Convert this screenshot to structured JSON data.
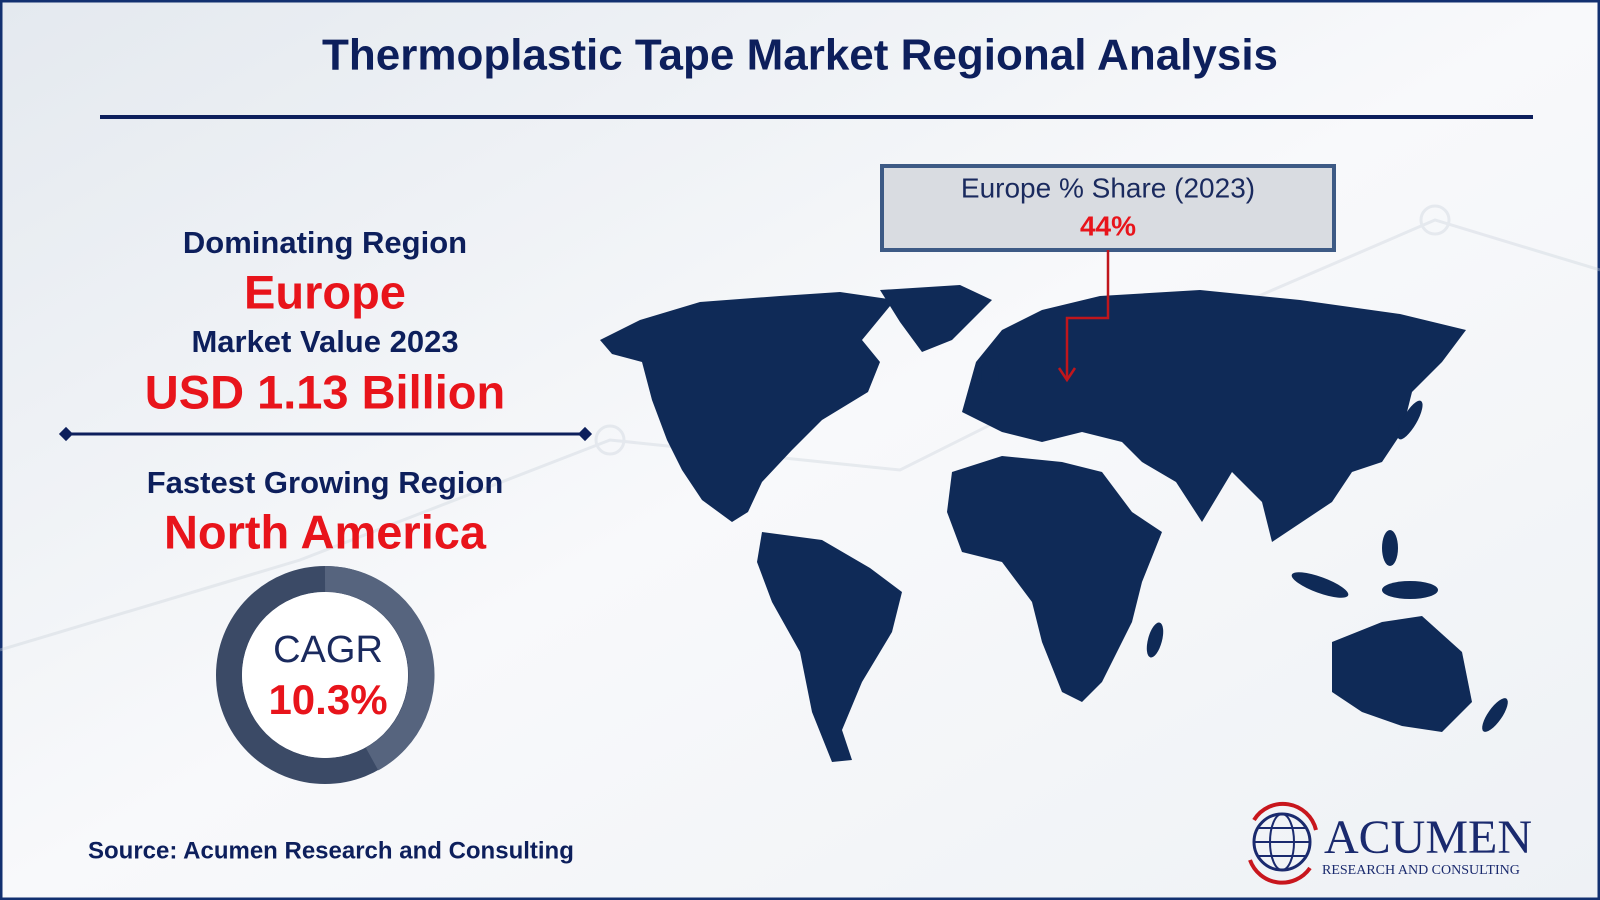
{
  "header": {
    "title": "Thermoplastic Tape Market Regional Analysis"
  },
  "summary": {
    "dominating_label": "Dominating Region",
    "dominating_region": "Europe",
    "market_value_label": "Market Value 2023",
    "market_value": "USD 1.13 Billion",
    "fastest_label": "Fastest Growing Region",
    "fastest_region": "North America",
    "cagr_label": "CAGR",
    "cagr": "10.3%"
  },
  "callout": {
    "label": "Europe % Share (2023)",
    "value": "44%"
  },
  "footer": {
    "source": "Source: Acumen Research and Consulting",
    "logo_name": "ACUMEN",
    "logo_tagline": "RESEARCH AND CONSULTING"
  }
}
